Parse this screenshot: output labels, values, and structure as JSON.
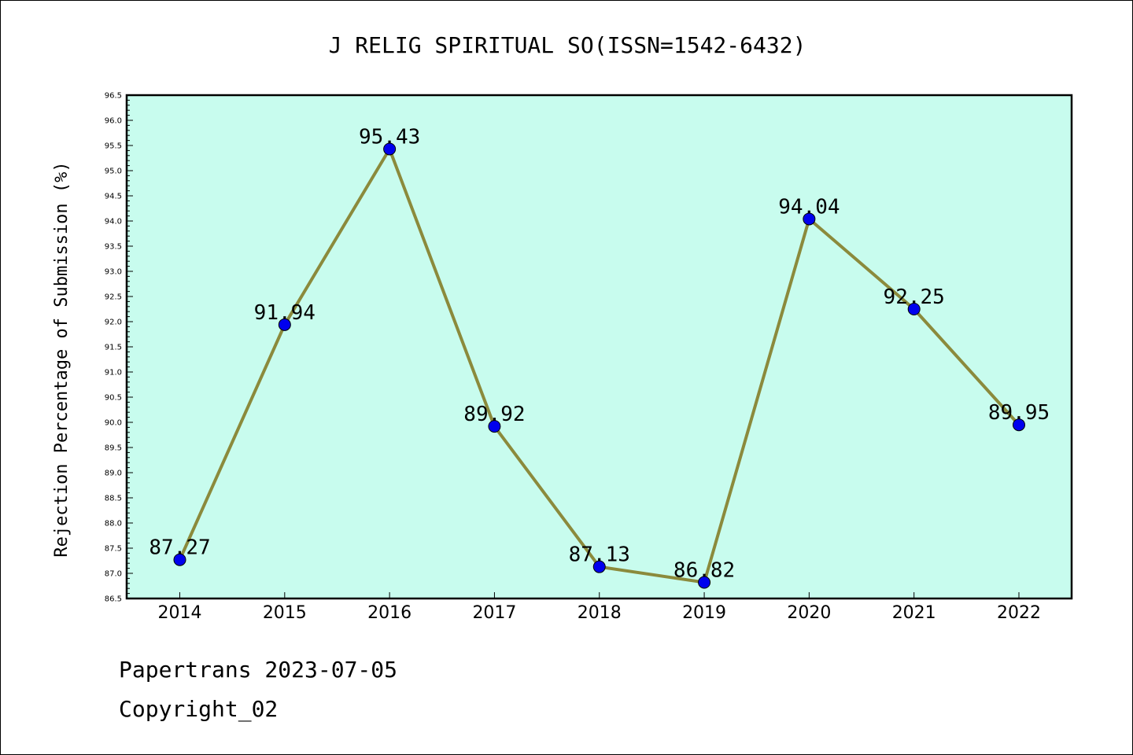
{
  "chart_data": {
    "type": "line",
    "title": "J RELIG SPIRITUAL SO(ISSN=1542-6432)",
    "xlabel": "",
    "ylabel": "Rejection Percentage of Submission (%)",
    "categories": [
      "2014",
      "2015",
      "2016",
      "2017",
      "2018",
      "2019",
      "2020",
      "2021",
      "2022"
    ],
    "series": [
      {
        "values": [
          87.27,
          91.94,
          95.43,
          89.92,
          87.13,
          86.82,
          94.04,
          92.25,
          89.95
        ]
      }
    ],
    "data_labels": [
      "87.27",
      "91.94",
      "95.43",
      "89.92",
      "87.13",
      "86.82",
      "94.04",
      "92.25",
      "89.95"
    ],
    "ylim": [
      86.5,
      96.5
    ],
    "ytick_step": 0.5,
    "grid": false,
    "colors": {
      "plot_background": "#c8fcee",
      "line": "#8b8a3c",
      "marker": "#0000ee",
      "axes": "#000000"
    }
  },
  "footer": {
    "source": "Papertrans 2023-07-05",
    "copyright": "Copyright_02"
  }
}
